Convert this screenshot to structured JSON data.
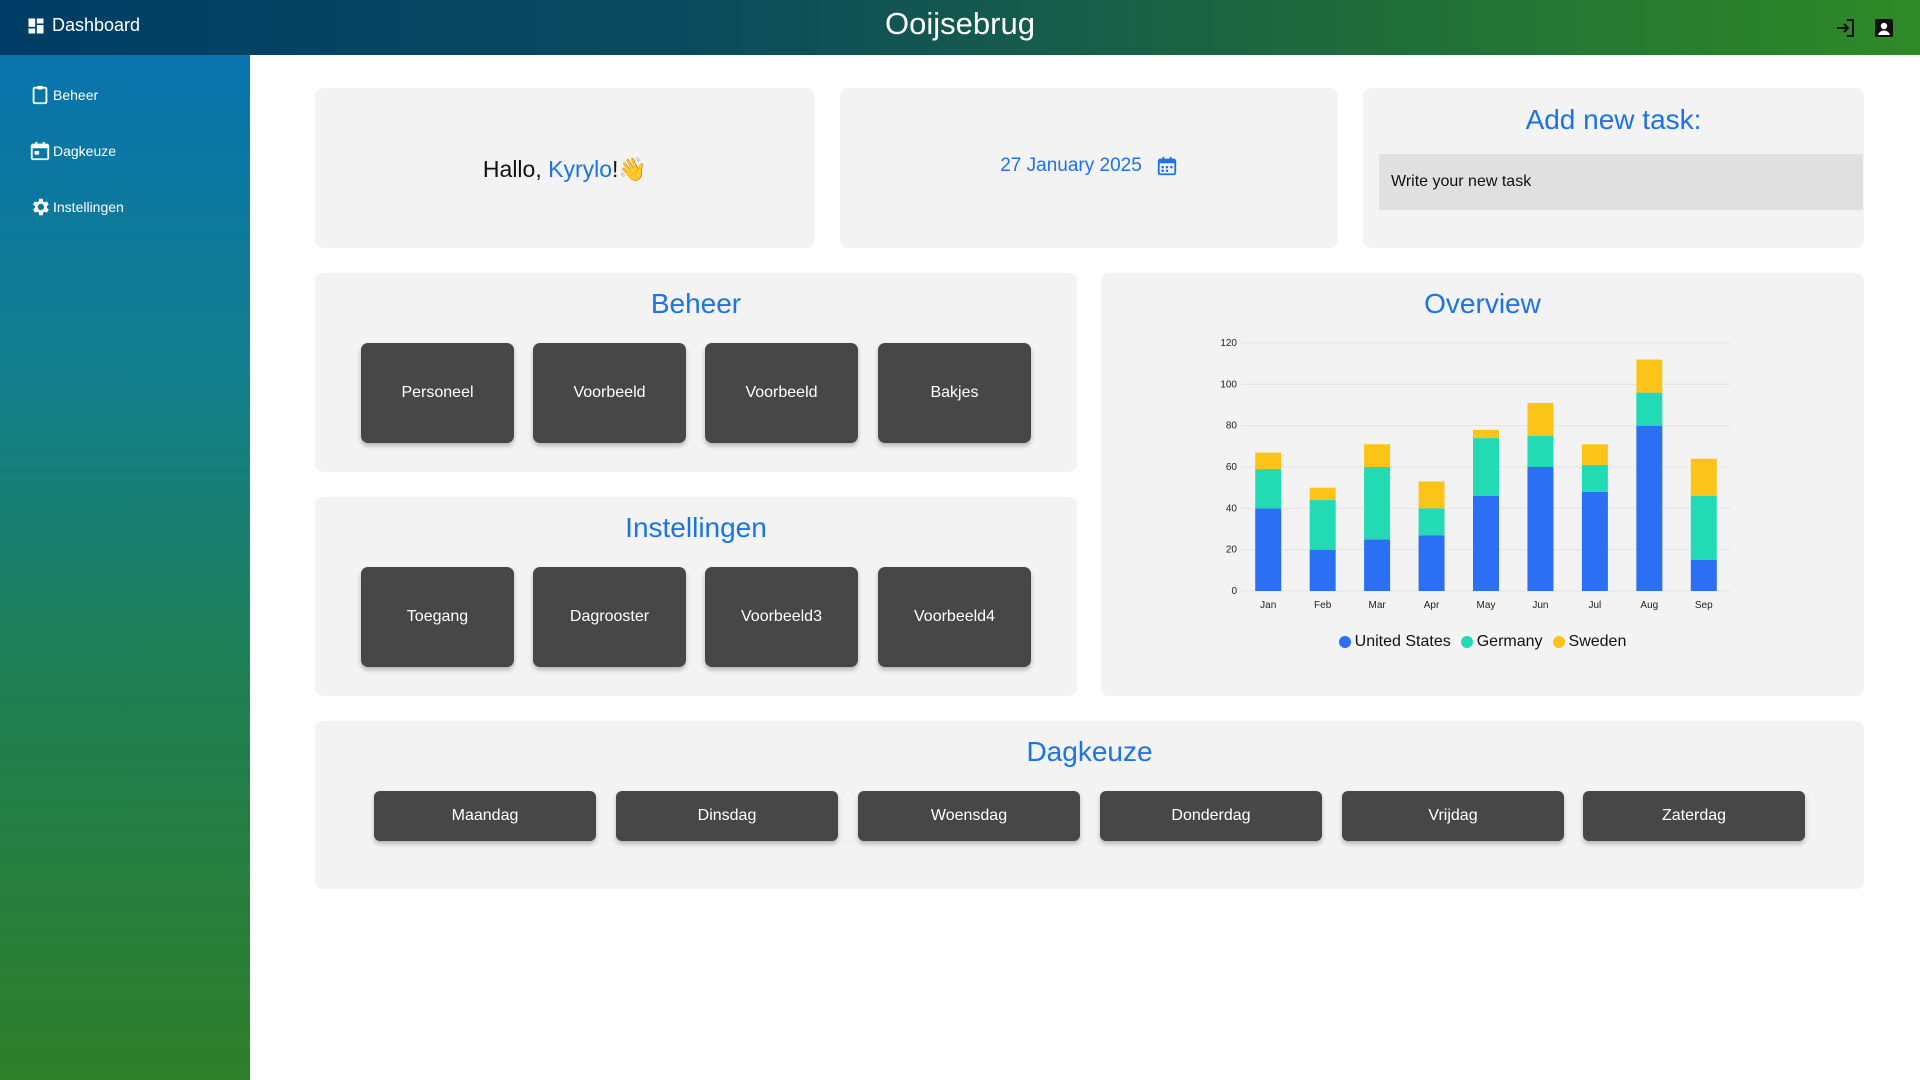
{
  "header": {
    "brand_label": "Dashboard",
    "title": "Ooijsebrug"
  },
  "sidebar": {
    "items": [
      {
        "label": "Beheer",
        "icon": "clipboard-icon"
      },
      {
        "label": "Dagkeuze",
        "icon": "calendar-icon"
      },
      {
        "label": "Instellingen",
        "icon": "gear-icon"
      }
    ]
  },
  "greeting": {
    "prefix": "Hallo,",
    "name": "Kyrylo",
    "suffix": "!",
    "emoji": "👋"
  },
  "date": {
    "text": "27 January 2025"
  },
  "task": {
    "title": "Add new task:",
    "placeholder": "Write your new task"
  },
  "beheer": {
    "title": "Beheer",
    "buttons": [
      "Personeel",
      "Voorbeeld",
      "Voorbeeld",
      "Bakjes"
    ]
  },
  "instellingen": {
    "title": "Instellingen",
    "buttons": [
      "Toegang",
      "Dagrooster",
      "Voorbeeld3",
      "Voorbeeld4"
    ]
  },
  "dagkeuze": {
    "title": "Dagkeuze",
    "days": [
      "Maandag",
      "Dinsdag",
      "Woensdag",
      "Donderdag",
      "Vrijdag",
      "Zaterdag"
    ]
  },
  "overview": {
    "title": "Overview"
  },
  "colors": {
    "accent": "#1a73e8",
    "united_states": "#2b6ff5",
    "germany": "#22dbb4",
    "sweden": "#fcc419"
  },
  "chart_data": {
    "type": "bar",
    "stacked": true,
    "title": "Overview",
    "categories": [
      "Jan",
      "Feb",
      "Mar",
      "Apr",
      "May",
      "Jun",
      "Jul",
      "Aug",
      "Sep"
    ],
    "series": [
      {
        "name": "United States",
        "values": [
          40,
          20,
          25,
          27,
          46,
          60,
          48,
          80,
          15
        ]
      },
      {
        "name": "Germany",
        "values": [
          19,
          24,
          35,
          13,
          28,
          15,
          13,
          16,
          31
        ]
      },
      {
        "name": "Sweden",
        "values": [
          8,
          6,
          11,
          13,
          4,
          16,
          10,
          16,
          18
        ]
      }
    ],
    "yticks": [
      0,
      20,
      40,
      60,
      80,
      100,
      120
    ],
    "ylim": [
      0,
      120
    ],
    "xlabel": "",
    "ylabel": "",
    "legend": "bottom-center"
  }
}
